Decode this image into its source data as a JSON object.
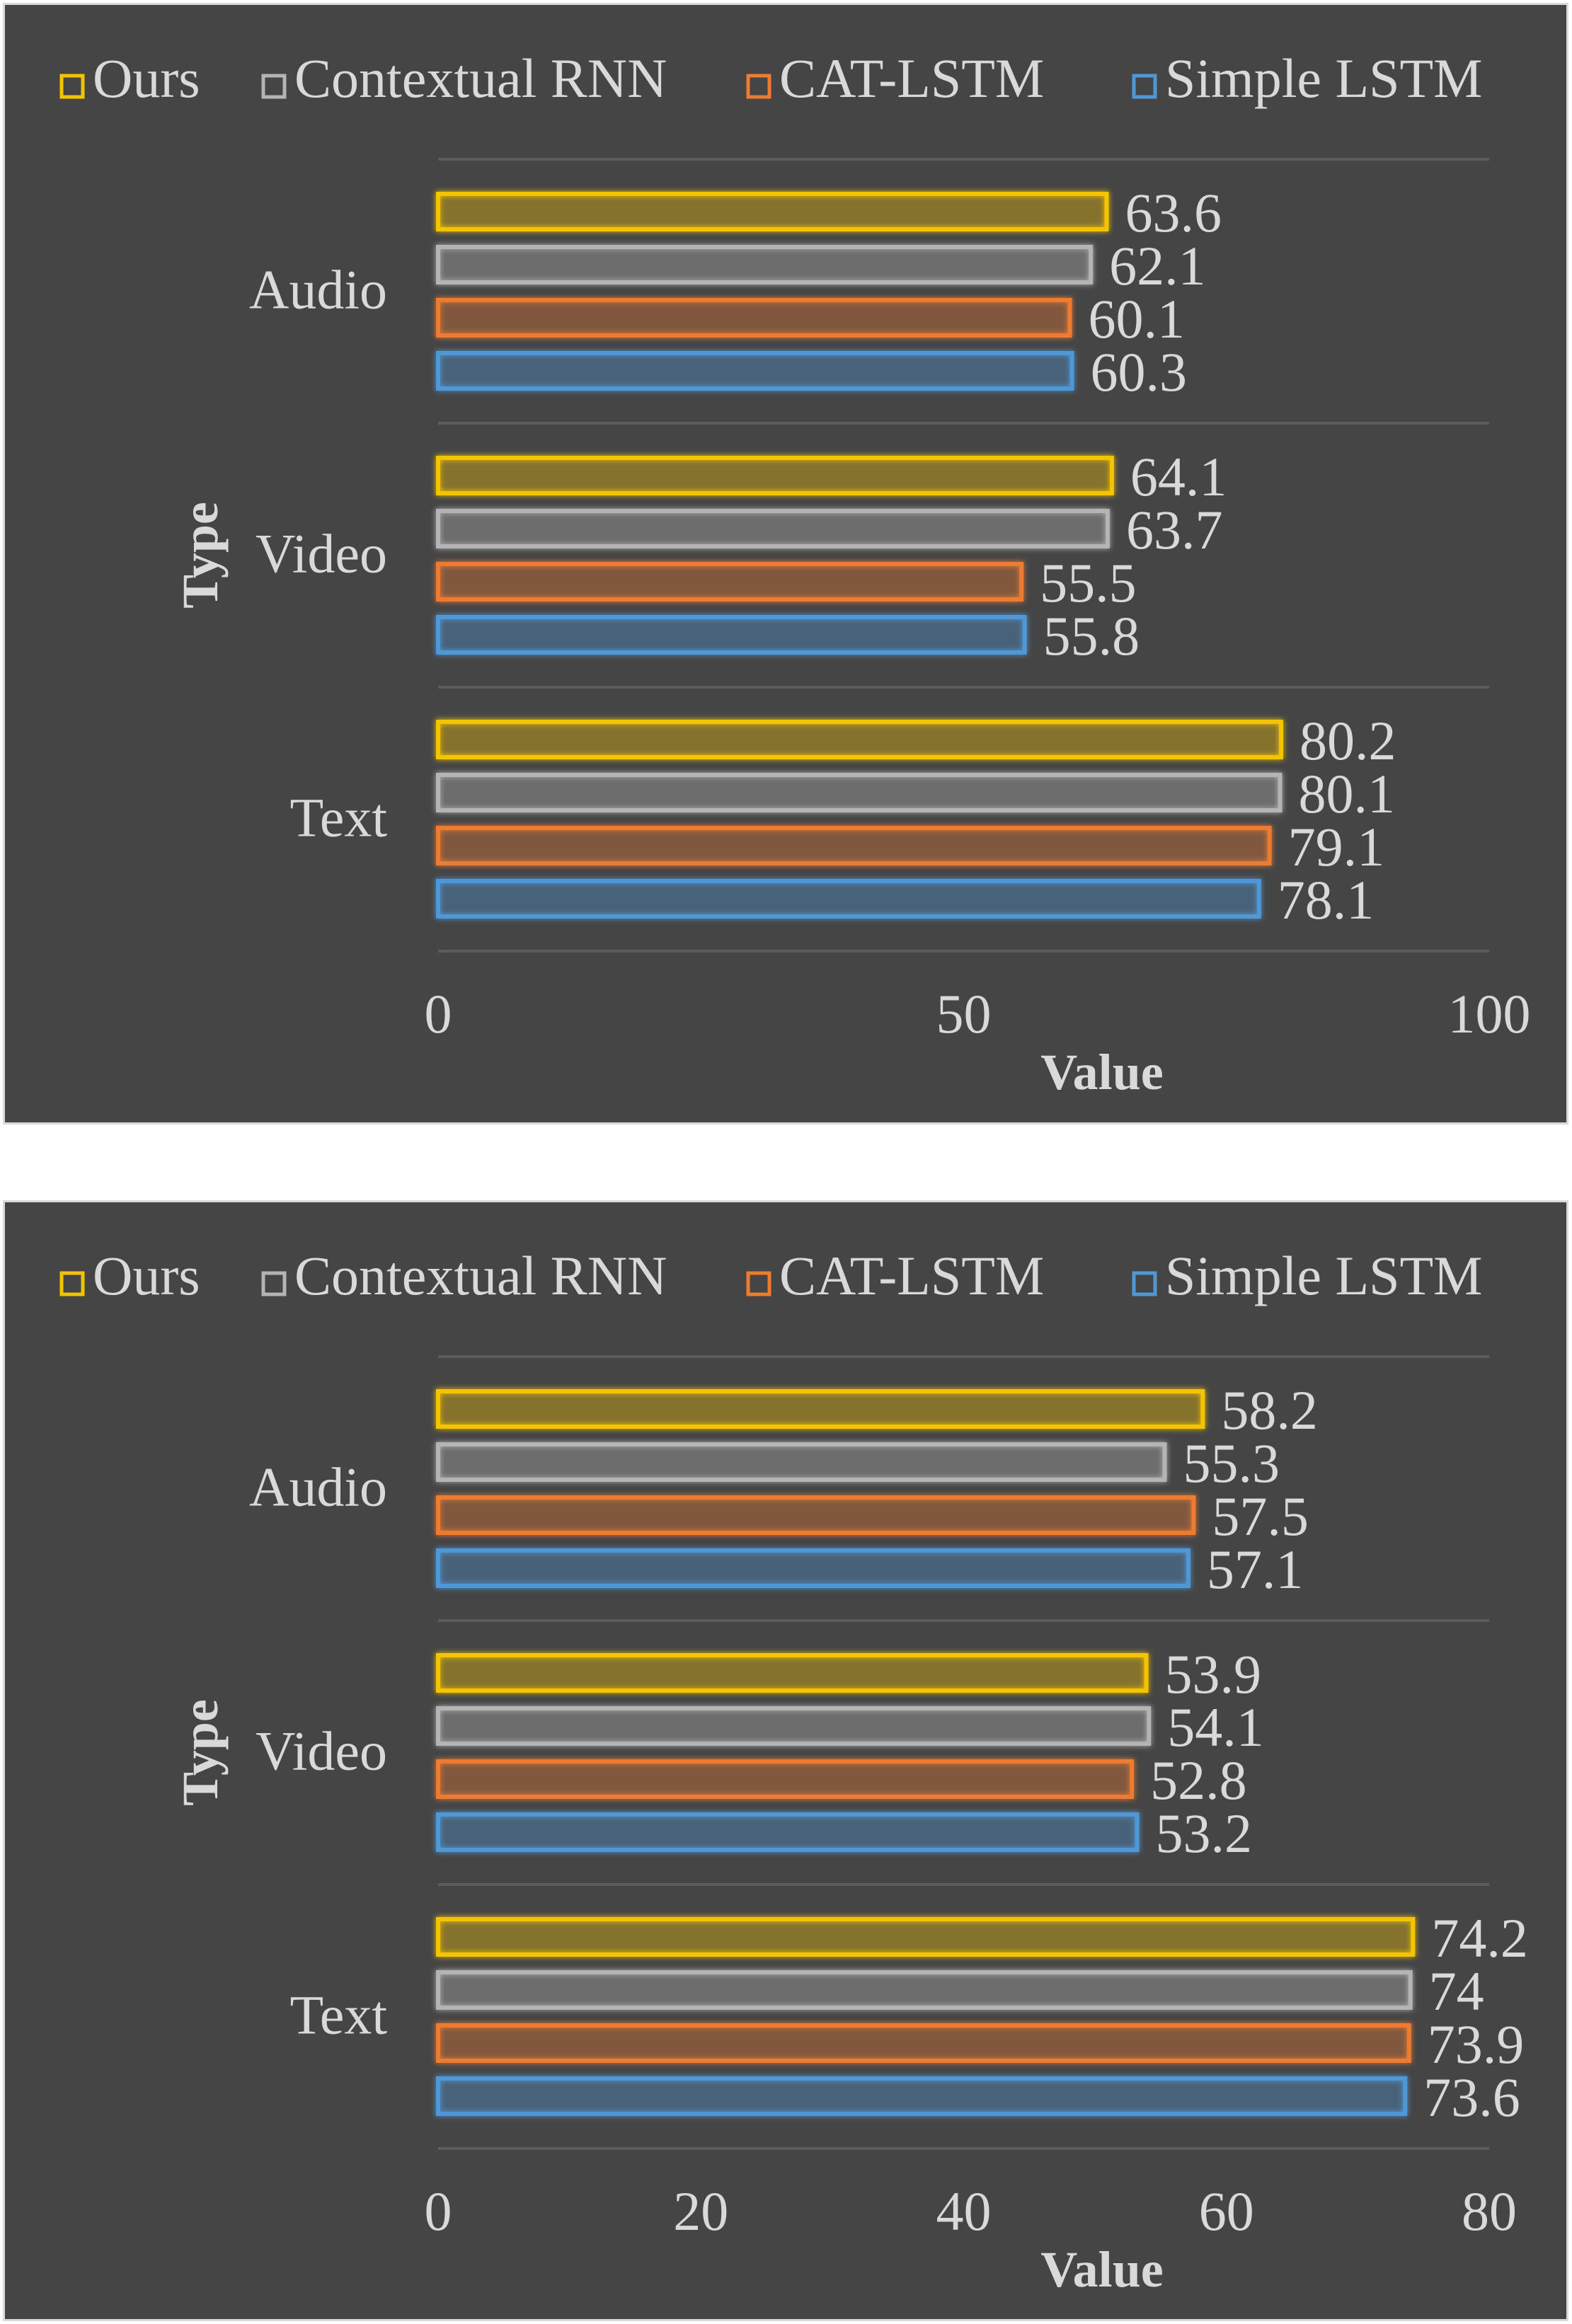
{
  "series_styles": [
    {
      "name": "Ours",
      "color": "#f5c400"
    },
    {
      "name": "Contextual RNN",
      "color": "#b4b4b4"
    },
    {
      "name": "CAT-LSTM",
      "color": "#ec7c30"
    },
    {
      "name": "Simple LSTM",
      "color": "#4f98d8"
    }
  ],
  "panel_color": "#454545",
  "text_color": "#d9d9d9",
  "chart_data": [
    {
      "type": "bar",
      "orientation": "horizontal",
      "categories": [
        "Audio",
        "Video",
        "Text"
      ],
      "series": [
        {
          "name": "Ours",
          "values": [
            63.6,
            64.1,
            80.2
          ]
        },
        {
          "name": "Contextual RNN",
          "values": [
            62.1,
            63.7,
            80.1
          ]
        },
        {
          "name": "CAT-LSTM",
          "values": [
            60.1,
            55.5,
            79.1
          ]
        },
        {
          "name": "Simple LSTM",
          "values": [
            60.3,
            55.8,
            78.1
          ]
        }
      ],
      "xlabel": "Value",
      "ylabel": "Type",
      "xlim": [
        0,
        100
      ],
      "xticks": [
        0,
        50,
        100
      ],
      "legend": "top",
      "grid": "horizontal"
    },
    {
      "type": "bar",
      "orientation": "horizontal",
      "categories": [
        "Audio",
        "Video",
        "Text"
      ],
      "series": [
        {
          "name": "Ours",
          "values": [
            58.2,
            53.9,
            74.2
          ]
        },
        {
          "name": "Contextual RNN",
          "values": [
            55.3,
            54.1,
            74
          ]
        },
        {
          "name": "CAT-LSTM",
          "values": [
            57.5,
            52.8,
            73.9
          ]
        },
        {
          "name": "Simple LSTM",
          "values": [
            57.1,
            53.2,
            73.6
          ]
        }
      ],
      "xlabel": "Value",
      "ylabel": "Type",
      "xlim": [
        0,
        80
      ],
      "xticks": [
        0,
        20,
        40,
        60,
        80
      ],
      "legend": "top",
      "grid": "horizontal"
    }
  ]
}
